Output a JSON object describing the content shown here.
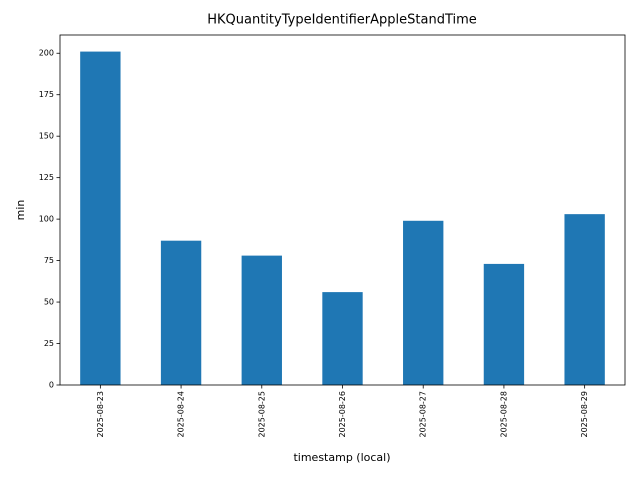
{
  "chart_data": {
    "type": "bar",
    "title": "HKQuantityTypeIdentifierAppleStandTime",
    "x_label": "timestamp (local)",
    "y_label": "min",
    "categories": [
      "2025-08-23",
      "2025-08-24",
      "2025-08-25",
      "2025-08-26",
      "2025-08-27",
      "2025-08-28",
      "2025-08-29"
    ],
    "values": [
      201,
      87,
      78,
      56,
      99,
      73,
      103
    ],
    "color": "#1f77b4",
    "ylim": [
      0,
      211
    ],
    "yticks": [
      0,
      25,
      50,
      75,
      100,
      125,
      150,
      175,
      200
    ],
    "grid": false
  }
}
